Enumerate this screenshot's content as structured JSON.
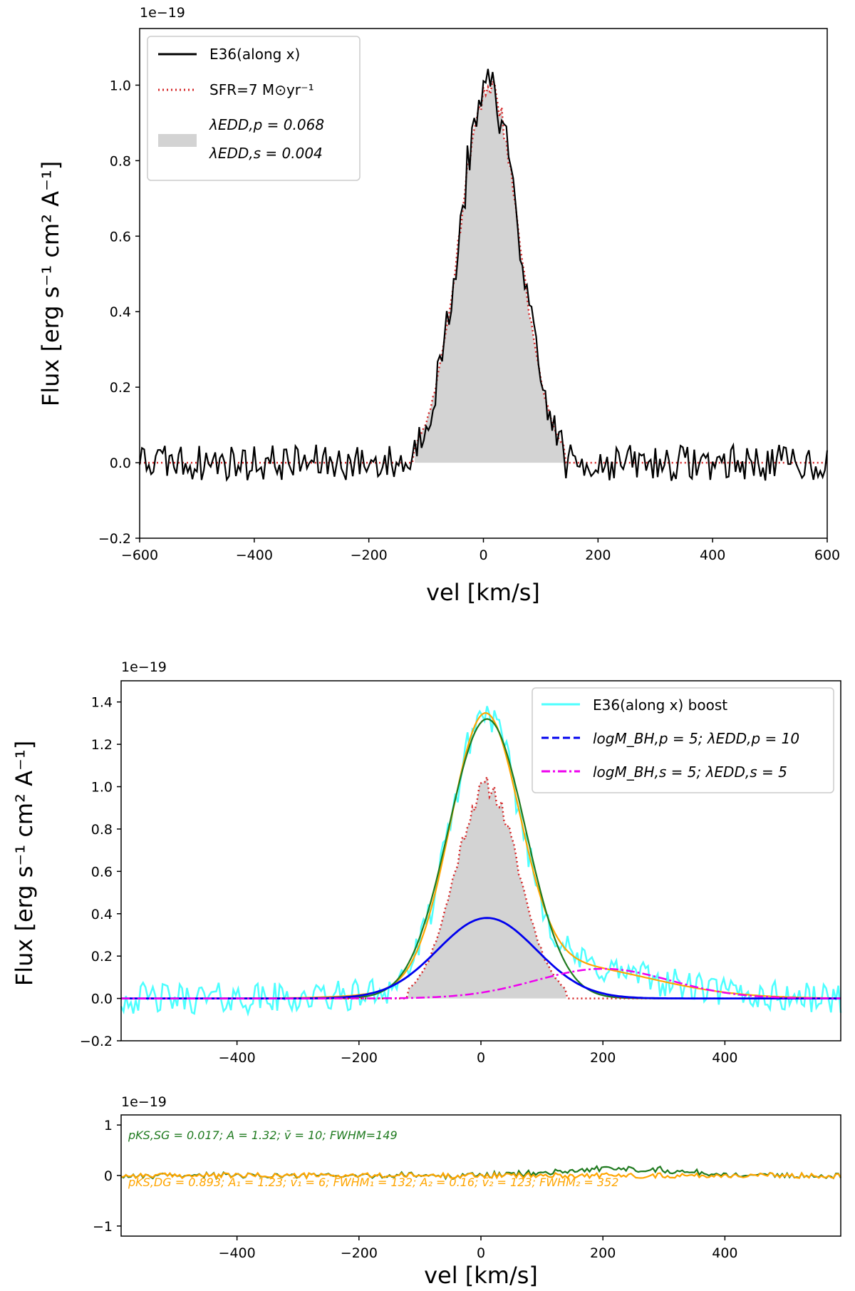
{
  "colors": {
    "black": "#000000",
    "red": "#d62728",
    "gray": "#d3d3d3",
    "cyan": "#4dffff",
    "blue": "#0000ee",
    "magenta": "#ee00ee",
    "orange": "#ffa500",
    "green": "#1f7a1f"
  },
  "chart_data": [
    {
      "type": "line",
      "id": "top",
      "offset_text": "1e−19",
      "xlabel": "vel [km/s]",
      "ylabel": "Flux [erg s⁻¹ cm² A⁻¹]",
      "xlim": [
        -600,
        600
      ],
      "ylim": [
        -0.2,
        1.15
      ],
      "xticks": [
        -600,
        -400,
        -200,
        0,
        200,
        400,
        600
      ],
      "xtick_labels": [
        "−600",
        "−400",
        "−200",
        "0",
        "200",
        "400",
        "600"
      ],
      "yticks": [
        -0.2,
        0.0,
        0.2,
        0.4,
        0.6,
        0.8,
        1.0
      ],
      "ytick_labels": [
        "−0.2",
        "0.0",
        "0.2",
        "0.4",
        "0.6",
        "0.8",
        "1.0"
      ],
      "legend_position": "top-left",
      "legend": [
        {
          "label": "E36(along x)",
          "style": "solid",
          "color": "#000000"
        },
        {
          "label": "SFR=7 M⊙yr⁻¹",
          "style": "dotted",
          "color": "#d62728"
        },
        {
          "label": "λEDD,p = 0.068",
          "label2": "λEDD,s = 0.004",
          "style": "patch",
          "color": "#d3d3d3"
        }
      ],
      "series": [
        {
          "name": "E36(along x)",
          "profile": {
            "center": 10,
            "sigma": 52,
            "amplitude": 1.0,
            "support": [
              -120,
              140
            ]
          },
          "noise_rms": 0.03
        },
        {
          "name": "SFR=7 M⊙yr⁻¹",
          "profile": {
            "center": 10,
            "sigma": 52,
            "amplitude": 1.0,
            "support": [
              -120,
              140
            ]
          }
        },
        {
          "name": "filled",
          "profile": {
            "center": 10,
            "sigma": 52,
            "amplitude": 1.0,
            "support": [
              -120,
              140
            ]
          }
        }
      ]
    },
    {
      "type": "line",
      "id": "middle",
      "offset_text": "1e−19",
      "xlabel": "",
      "ylabel": "Flux [erg s⁻¹ cm² A⁻¹]",
      "xlim": [
        -590,
        590
      ],
      "ylim": [
        -0.2,
        1.5
      ],
      "xticks": [
        -400,
        -200,
        0,
        200,
        400
      ],
      "xtick_labels": [
        "−400",
        "−200",
        "0",
        "200",
        "400"
      ],
      "yticks": [
        -0.2,
        0.0,
        0.2,
        0.4,
        0.6,
        0.8,
        1.0,
        1.2,
        1.4
      ],
      "ytick_labels": [
        "−0.2",
        "0.0",
        "0.2",
        "0.4",
        "0.6",
        "0.8",
        "1.0",
        "1.2",
        "1.4"
      ],
      "legend_position": "top-right",
      "legend": [
        {
          "label": "E36(along x) boost",
          "style": "solid",
          "color": "#4dffff"
        },
        {
          "label": "logM_BH,p = 5; λEDD,p = 10",
          "style": "dashed",
          "color": "#0000ee"
        },
        {
          "label": "logM_BH,s = 5; λEDD,s = 5",
          "style": "dashdot",
          "color": "#ee00ee"
        }
      ],
      "series": [
        {
          "name": "E36(along x) boost",
          "peak": 1.35,
          "center": 10,
          "fwhm": 149,
          "noise_rms": 0.05
        },
        {
          "name": "blue primary BH",
          "amplitude": 0.38,
          "center": 10,
          "fwhm": 190
        },
        {
          "name": "magenta secondary BH",
          "amplitude": 0.14,
          "center": 200,
          "fwhm": 260
        },
        {
          "name": "single gaussian fit (green)",
          "amplitude": 1.32,
          "center": 10,
          "fwhm": 149
        },
        {
          "name": "double gaussian fit (orange)",
          "components": [
            {
              "amplitude": 1.23,
              "center": 6,
              "fwhm": 132
            },
            {
              "amplitude": 0.16,
              "center": 123,
              "fwhm": 352
            }
          ]
        },
        {
          "name": "star formation (red dotted, gray fill)",
          "amplitude": 1.0,
          "center": 10,
          "sigma": 52,
          "support": [
            -120,
            140
          ]
        }
      ]
    },
    {
      "type": "line",
      "id": "residuals",
      "offset_text": "1e−19",
      "xlabel": "vel [km/s]",
      "ylabel": "",
      "xlim": [
        -590,
        590
      ],
      "ylim": [
        -1.2,
        1.2
      ],
      "xticks": [
        -400,
        -200,
        0,
        200,
        400
      ],
      "xtick_labels": [
        "−400",
        "−200",
        "0",
        "200",
        "400"
      ],
      "yticks": [
        -1,
        0,
        1
      ],
      "ytick_labels": [
        "−1",
        "0",
        "1"
      ],
      "annotations": [
        {
          "text": "pKS,SG = 0.017; A = 1.32; v̄ = 10; FWHM=149",
          "color": "#1f7a1f",
          "anchor": "top-left"
        },
        {
          "text": "pKS,DG = 0.893; A₁ = 1.23; v̄₁ = 6; FWHM₁ = 132; A₂ = 0.16; v̄₂ = 123; FWHM₂ = 352",
          "color": "#ffa500",
          "anchor": "bottom-left"
        }
      ],
      "series": [
        {
          "name": "single gaussian residual",
          "color": "#1f7a1f",
          "noise_rms": 0.04,
          "bump": {
            "center": 230,
            "fwhm": 220,
            "amplitude": 0.14
          }
        },
        {
          "name": "double gaussian residual",
          "color": "#ffa500",
          "noise_rms": 0.04
        }
      ]
    }
  ]
}
